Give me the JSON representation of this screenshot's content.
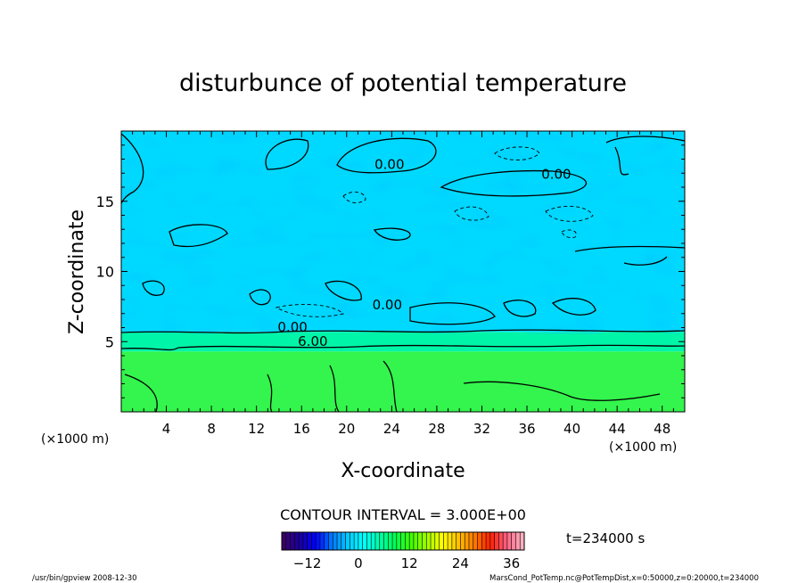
{
  "chart_data": {
    "type": "heatmap",
    "title": "disturbunce of potential temperature",
    "xlabel": "X-coordinate",
    "ylabel": "Z-coordinate",
    "x_unit_left": "(×1000 m)",
    "x_unit_right": "(×1000 m)",
    "xlim": [
      0,
      50
    ],
    "ylim": [
      0,
      20
    ],
    "xticks": [
      4,
      8,
      12,
      16,
      20,
      24,
      28,
      32,
      36,
      40,
      44,
      48
    ],
    "yticks": [
      5,
      10,
      15
    ],
    "contour_interval_text": "CONTOUR INTERVAL = 3.000E+00",
    "time_text": "t=234000 s",
    "contour_labels": [
      {
        "text": "0.00",
        "x": 23.8,
        "z": 17.3
      },
      {
        "text": "0.00",
        "x": 38.6,
        "z": 16.6
      },
      {
        "text": "0.00",
        "x": 23.6,
        "z": 7.3
      },
      {
        "text": "0.00",
        "x": 15.2,
        "z": 5.7
      },
      {
        "text": "6.00",
        "x": 17.0,
        "z": 4.7
      }
    ],
    "colorbar": {
      "range": [
        -18,
        39
      ],
      "ticks": [
        -12,
        0,
        12,
        24,
        36
      ],
      "colors": [
        "#3a0066",
        "#1a00a0",
        "#0000ff",
        "#0078ff",
        "#00c8ff",
        "#00ffff",
        "#00ffaa",
        "#00ff55",
        "#40ff00",
        "#a0ff00",
        "#ffff00",
        "#ffc000",
        "#ff7800",
        "#ff2000",
        "#ff6080",
        "#ffb0c0"
      ]
    },
    "layers": [
      {
        "zmin": 0,
        "zmax": 4.3,
        "value": 7,
        "color": "#33f54d"
      },
      {
        "zmin": 4.3,
        "zmax": 5.7,
        "value": 3,
        "color": "#00f5a8"
      },
      {
        "zmin": 5.7,
        "zmax": 20,
        "value": -3,
        "color": "#00d9ff"
      }
    ],
    "footer_left": "/usr/bin/gpview   2008-12-30",
    "footer_right": "MarsCond_PotTemp.nc@PotTempDist,x=0:50000,z=0:20000,t=234000"
  }
}
